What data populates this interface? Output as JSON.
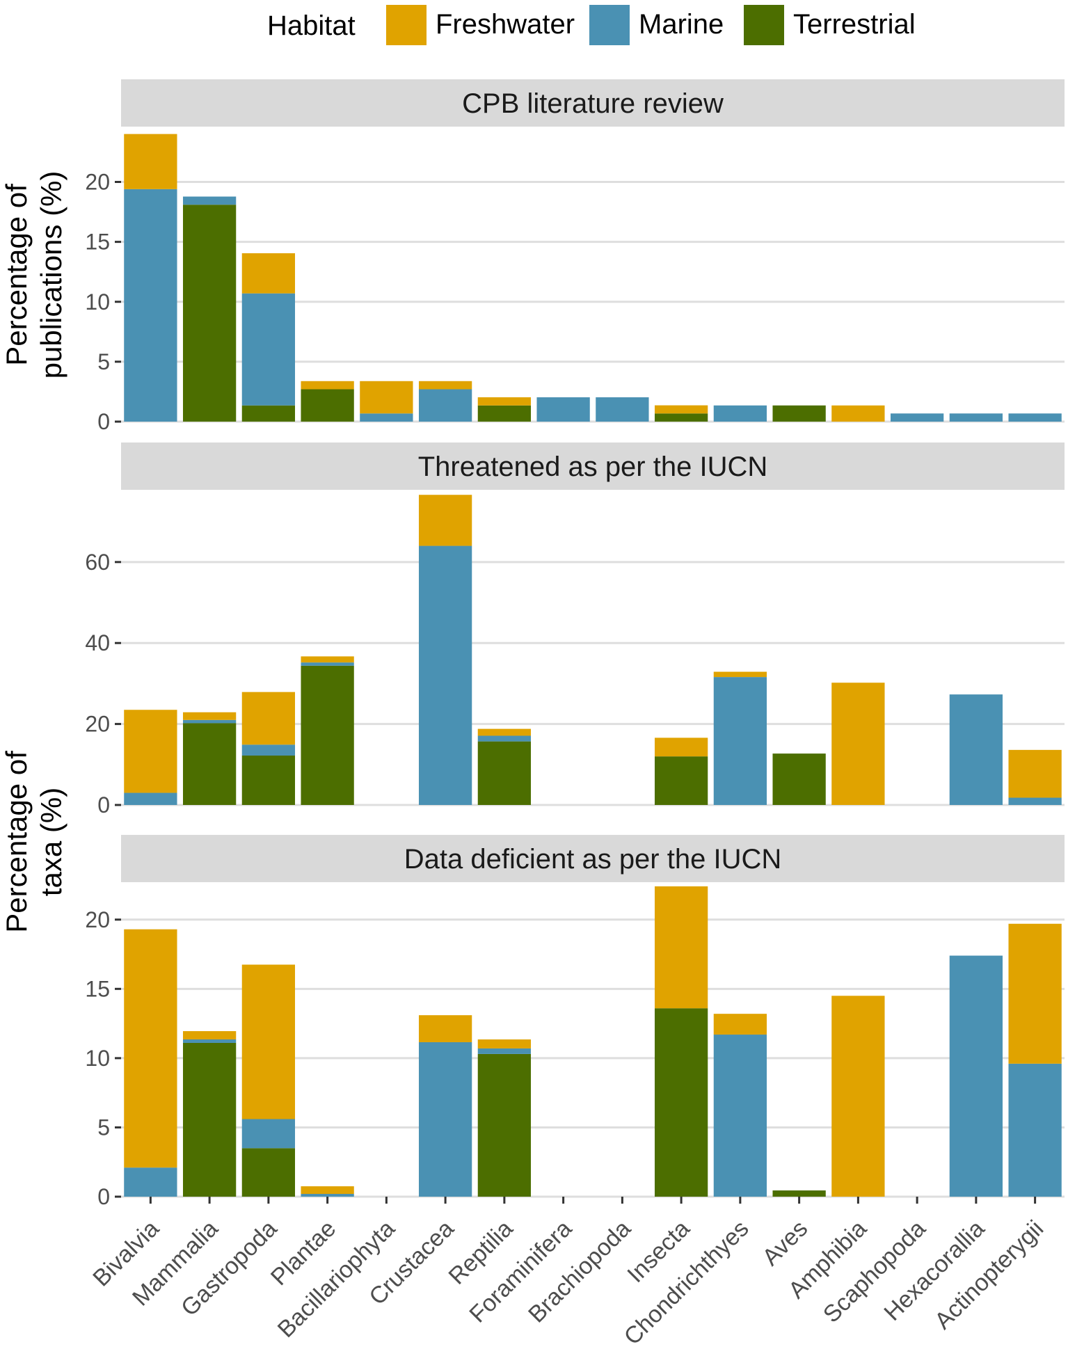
{
  "chart_data": {
    "type": "bar",
    "stacked": true,
    "legend": {
      "title": "Habitat",
      "position": "top",
      "entries": [
        {
          "name": "Freshwater",
          "color": "#E0A300"
        },
        {
          "name": "Marine",
          "color": "#4A91B3"
        },
        {
          "name": "Terrestrial",
          "color": "#4C6E00"
        }
      ]
    },
    "categories": [
      "Bivalvia",
      "Mammalia",
      "Gastropoda",
      "Plantae",
      "Bacillariophyta",
      "Crustacea",
      "Reptilia",
      "Foraminifera",
      "Brachiopoda",
      "Insecta",
      "Chondrichthyes",
      "Aves",
      "Amphibia",
      "Scaphopoda",
      "Hexacorallia",
      "Actinopterygii"
    ],
    "stack_order": [
      "Terrestrial",
      "Marine",
      "Freshwater"
    ],
    "y_titles": {
      "top": [
        "Percentage of",
        "publications (%)"
      ],
      "bottom": [
        "Percentage of",
        "taxa (%)"
      ]
    },
    "panels": [
      {
        "title": "CPB literature review",
        "ylim": [
          0,
          24.5
        ],
        "yticks": [
          0,
          5,
          10,
          15,
          20
        ],
        "series": [
          {
            "name": "Terrestrial",
            "values": [
              0,
              18.1,
              1.35,
              2.7,
              0,
              0,
              1.35,
              0,
              0,
              0.68,
              0,
              1.35,
              0,
              0,
              0,
              0
            ]
          },
          {
            "name": "Marine",
            "values": [
              19.4,
              0.68,
              9.35,
              0,
              0.68,
              2.7,
              0,
              2.03,
              2.03,
              0,
              1.35,
              0,
              0,
              0.68,
              0.68,
              0.68
            ]
          },
          {
            "name": "Freshwater",
            "values": [
              4.6,
              0,
              3.35,
              0.68,
              2.7,
              0.68,
              0.68,
              0,
              0,
              0.68,
              0,
              0,
              1.35,
              0,
              0,
              0
            ]
          }
        ]
      },
      {
        "title": "Threatened as per the IUCN",
        "ylim": [
          0,
          77.5
        ],
        "yticks": [
          0,
          20,
          40,
          60
        ],
        "series": [
          {
            "name": "Terrestrial",
            "values": [
              0,
              20.2,
              12.2,
              34.4,
              0,
              0,
              15.7,
              0,
              0,
              12.0,
              0,
              12.7,
              0,
              0,
              0,
              0
            ]
          },
          {
            "name": "Marine",
            "values": [
              3.0,
              0.8,
              2.7,
              0.8,
              0,
              64.0,
              1.4,
              0,
              0,
              0,
              31.6,
              0,
              0,
              0,
              27.3,
              1.8
            ]
          },
          {
            "name": "Freshwater",
            "values": [
              20.5,
              1.9,
              13.0,
              1.5,
              0,
              12.6,
              1.7,
              0,
              0,
              4.6,
              1.3,
              0,
              30.2,
              0,
              0,
              11.8
            ]
          }
        ]
      },
      {
        "title": "Data deficient as per the IUCN",
        "ylim": [
          0,
          22.6
        ],
        "yticks": [
          0,
          5,
          10,
          15,
          20
        ],
        "series": [
          {
            "name": "Terrestrial",
            "values": [
              0,
              11.1,
              3.5,
              0,
              0,
              0,
              10.3,
              0,
              0,
              13.6,
              0,
              0.45,
              0,
              0,
              0,
              0
            ]
          },
          {
            "name": "Marine",
            "values": [
              2.1,
              0.25,
              2.1,
              0.2,
              0,
              11.15,
              0.4,
              0,
              0,
              0,
              11.7,
              0,
              0,
              0,
              17.4,
              9.6
            ]
          },
          {
            "name": "Freshwater",
            "values": [
              17.2,
              0.6,
              11.15,
              0.55,
              0,
              1.95,
              0.65,
              0,
              0,
              8.8,
              1.5,
              0,
              14.5,
              0,
              0,
              10.1
            ]
          }
        ]
      }
    ]
  }
}
